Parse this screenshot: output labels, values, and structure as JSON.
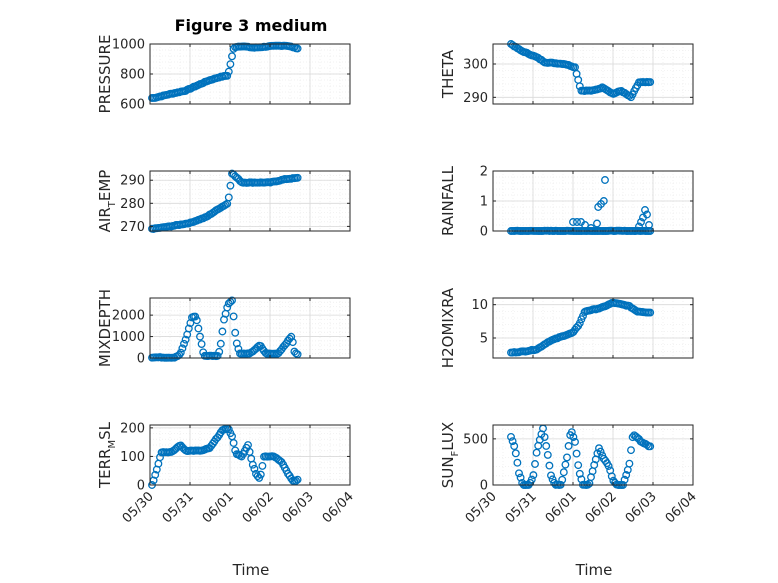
{
  "figure": {
    "title": "Figure 3 medium",
    "x_label": "Time"
  },
  "colors": {
    "marker": "#0072BD",
    "axis": "#262626",
    "grid": "#d9d9d9",
    "background": "#ffffff"
  },
  "x_ticks": [
    "05/30",
    "05/31",
    "06/01",
    "06/02",
    "06/03",
    "06/04"
  ],
  "chart_data": [
    {
      "type": "scatter",
      "row": 0,
      "col": 0,
      "ylabel_main": "PRESSURE",
      "ylabel_sub": "",
      "ylabel_tail": "",
      "ylim": [
        600,
        1000
      ],
      "yticks": [
        600,
        800,
        1000
      ],
      "anchors": [
        [
          0.1,
          640
        ],
        [
          0.4,
          660
        ],
        [
          0.9,
          690
        ],
        [
          1.15,
          720
        ],
        [
          1.45,
          755
        ],
        [
          1.75,
          780
        ],
        [
          1.95,
          790
        ],
        [
          2.1,
          980
        ],
        [
          2.3,
          985
        ],
        [
          2.6,
          975
        ],
        [
          3.0,
          985
        ],
        [
          3.4,
          990
        ],
        [
          3.7,
          970
        ]
      ],
      "range": [
        0.05,
        3.7
      ],
      "step": 0.04
    },
    {
      "type": "scatter",
      "row": 0,
      "col": 1,
      "ylabel_main": "THETA",
      "ylabel_sub": "",
      "ylabel_tail": "",
      "ylim": [
        288,
        306
      ],
      "yticks": [
        290,
        300
      ],
      "anchors": [
        [
          0.45,
          306
        ],
        [
          0.7,
          304
        ],
        [
          1.1,
          302
        ],
        [
          1.3,
          300.5
        ],
        [
          1.8,
          300
        ],
        [
          2.05,
          299
        ],
        [
          2.2,
          292
        ],
        [
          2.5,
          292
        ],
        [
          2.75,
          293
        ],
        [
          3.0,
          291
        ],
        [
          3.2,
          292
        ],
        [
          3.45,
          290
        ],
        [
          3.65,
          294.5
        ],
        [
          3.95,
          294.5
        ]
      ],
      "range": [
        0.45,
        3.95
      ],
      "step": 0.04
    },
    {
      "type": "scatter",
      "row": 1,
      "col": 0,
      "ylabel_main": "AIR",
      "ylabel_sub": "T",
      "ylabel_tail": "EMP",
      "ylim": [
        268,
        294
      ],
      "yticks": [
        270,
        280,
        290
      ],
      "anchors": [
        [
          0.1,
          269
        ],
        [
          0.5,
          270
        ],
        [
          1.0,
          271.5
        ],
        [
          1.4,
          274
        ],
        [
          1.75,
          278
        ],
        [
          1.95,
          280
        ],
        [
          2.05,
          293
        ],
        [
          2.3,
          289
        ],
        [
          2.6,
          289
        ],
        [
          3.0,
          289
        ],
        [
          3.4,
          290.5
        ],
        [
          3.7,
          291
        ]
      ],
      "range": [
        0.05,
        3.7
      ],
      "step": 0.04
    },
    {
      "type": "scatter",
      "row": 1,
      "col": 1,
      "ylabel_main": "RAINFALL",
      "ylabel_sub": "",
      "ylabel_tail": "",
      "ylim": [
        0,
        2
      ],
      "yticks": [
        0,
        1,
        2
      ],
      "anchors": [
        [
          0.45,
          0
        ],
        [
          3.95,
          0
        ]
      ],
      "range": [
        0.45,
        3.95
      ],
      "step": 0.04,
      "extra": [
        [
          2.0,
          0.3
        ],
        [
          2.1,
          0.3
        ],
        [
          2.2,
          0.3
        ],
        [
          2.3,
          0.2
        ],
        [
          2.45,
          0.1
        ],
        [
          2.6,
          0.25
        ],
        [
          2.63,
          0.8
        ],
        [
          2.7,
          0.9
        ],
        [
          2.77,
          1.0
        ],
        [
          2.8,
          1.7
        ],
        [
          3.65,
          0.15
        ],
        [
          3.7,
          0.3
        ],
        [
          3.75,
          0.45
        ],
        [
          3.8,
          0.7
        ],
        [
          3.85,
          0.55
        ],
        [
          3.9,
          0.2
        ]
      ]
    },
    {
      "type": "scatter",
      "row": 2,
      "col": 0,
      "ylabel_main": "MIXDEPTH",
      "ylabel_sub": "",
      "ylabel_tail": "",
      "ylim": [
        0,
        2800
      ],
      "yticks": [
        0,
        1000,
        2000
      ],
      "anchors": [
        [
          0.1,
          30
        ],
        [
          0.6,
          20
        ],
        [
          0.75,
          150
        ],
        [
          0.9,
          900
        ],
        [
          1.05,
          1900
        ],
        [
          1.15,
          1950
        ],
        [
          1.25,
          1000
        ],
        [
          1.35,
          100
        ],
        [
          1.7,
          100
        ],
        [
          1.75,
          400
        ],
        [
          1.85,
          1800
        ],
        [
          1.95,
          2500
        ],
        [
          2.05,
          2700
        ],
        [
          2.15,
          800
        ],
        [
          2.25,
          200
        ],
        [
          2.5,
          200
        ],
        [
          2.75,
          600
        ],
        [
          2.9,
          200
        ],
        [
          3.2,
          200
        ],
        [
          3.45,
          800
        ],
        [
          3.55,
          1050
        ],
        [
          3.6,
          300
        ],
        [
          3.7,
          150
        ]
      ],
      "range": [
        0.05,
        3.7
      ],
      "step": 0.04
    },
    {
      "type": "scatter",
      "row": 2,
      "col": 1,
      "ylabel_main": "H2OMIXRA",
      "ylabel_sub": "",
      "ylabel_tail": "",
      "ylim": [
        2,
        11
      ],
      "yticks": [
        5,
        10
      ],
      "anchors": [
        [
          0.45,
          2.8
        ],
        [
          0.8,
          3.0
        ],
        [
          1.1,
          3.3
        ],
        [
          1.4,
          4.5
        ],
        [
          1.75,
          5.3
        ],
        [
          2.0,
          5.8
        ],
        [
          2.15,
          7.0
        ],
        [
          2.3,
          9.0
        ],
        [
          2.7,
          9.5
        ],
        [
          3.0,
          10.3
        ],
        [
          3.4,
          9.8
        ],
        [
          3.6,
          9.0
        ],
        [
          3.95,
          8.8
        ]
      ],
      "range": [
        0.45,
        3.95
      ],
      "step": 0.04
    },
    {
      "type": "scatter",
      "row": 3,
      "col": 0,
      "ylabel_main": "TERR",
      "ylabel_sub": "M",
      "ylabel_tail": "SL",
      "ylim": [
        0,
        210
      ],
      "yticks": [
        0,
        100,
        200
      ],
      "anchors": [
        [
          0.05,
          0
        ],
        [
          0.12,
          30
        ],
        [
          0.2,
          70
        ],
        [
          0.28,
          115
        ],
        [
          0.55,
          115
        ],
        [
          0.75,
          140
        ],
        [
          0.9,
          120
        ],
        [
          1.3,
          120
        ],
        [
          1.5,
          130
        ],
        [
          1.65,
          160
        ],
        [
          1.8,
          190
        ],
        [
          1.95,
          200
        ],
        [
          2.05,
          170
        ],
        [
          2.15,
          110
        ],
        [
          2.3,
          100
        ],
        [
          2.45,
          140
        ],
        [
          2.55,
          80
        ],
        [
          2.65,
          40
        ],
        [
          2.75,
          20
        ],
        [
          2.85,
          100
        ],
        [
          3.1,
          100
        ],
        [
          3.3,
          80
        ],
        [
          3.45,
          40
        ],
        [
          3.6,
          10
        ],
        [
          3.7,
          20
        ]
      ],
      "range": [
        0.05,
        3.7
      ],
      "step": 0.04
    },
    {
      "type": "scatter",
      "row": 3,
      "col": 1,
      "ylabel_main": "SUN",
      "ylabel_sub": "F",
      "ylabel_tail": "LUX",
      "ylim": [
        0,
        650
      ],
      "yticks": [
        0,
        500
      ],
      "anchors": [
        [
          0.45,
          520
        ],
        [
          0.55,
          400
        ],
        [
          0.65,
          130
        ],
        [
          0.75,
          0
        ],
        [
          0.9,
          0
        ],
        [
          1.0,
          80
        ],
        [
          1.1,
          380
        ],
        [
          1.25,
          610
        ],
        [
          1.35,
          380
        ],
        [
          1.45,
          100
        ],
        [
          1.55,
          0
        ],
        [
          1.7,
          0
        ],
        [
          1.85,
          300
        ],
        [
          1.95,
          600
        ],
        [
          2.05,
          470
        ],
        [
          2.15,
          150
        ],
        [
          2.25,
          0
        ],
        [
          2.4,
          0
        ],
        [
          2.55,
          250
        ],
        [
          2.65,
          400
        ],
        [
          2.75,
          300
        ],
        [
          2.9,
          200
        ],
        [
          3.0,
          50
        ],
        [
          3.1,
          0
        ],
        [
          3.25,
          0
        ],
        [
          3.4,
          200
        ],
        [
          3.5,
          550
        ],
        [
          3.6,
          520
        ],
        [
          3.7,
          470
        ],
        [
          3.9,
          420
        ]
      ],
      "range": [
        0.45,
        3.95
      ],
      "step": 0.04
    }
  ]
}
